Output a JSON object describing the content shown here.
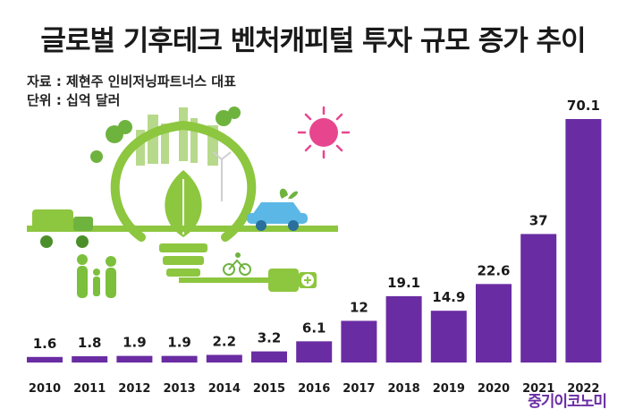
{
  "header": {
    "title": "글로벌 기후테크 벤처캐피털 투자 규모 증가 추이",
    "source": "자료 : 제현주 인비저닝파트너스 대표",
    "unit": "단위 : 십억 달러"
  },
  "logo": "중기이코노미",
  "colors": {
    "bar": "#6a2ca3",
    "illustration_green": "#8dc63f",
    "sun": "#e7468f"
  },
  "chart_data": {
    "type": "bar",
    "categories": [
      "2010",
      "2011",
      "2012",
      "2013",
      "2014",
      "2015",
      "2016",
      "2017",
      "2018",
      "2019",
      "2020",
      "2021",
      "2022"
    ],
    "values": [
      1.6,
      1.8,
      1.9,
      1.9,
      2.2,
      3.2,
      6.1,
      12,
      19.1,
      14.9,
      22.6,
      37,
      70.1
    ],
    "value_labels": [
      "1.6",
      "1.8",
      "1.9",
      "1.9",
      "2.2",
      "3.2",
      "6.1",
      "12",
      "19.1",
      "14.9",
      "22.6",
      "37",
      "70.1"
    ],
    "title": "글로벌 기후테크 벤처캐피털 투자 규모 증가 추이",
    "ylabel": "",
    "ylim": [
      0,
      70.1
    ],
    "grid": false
  }
}
